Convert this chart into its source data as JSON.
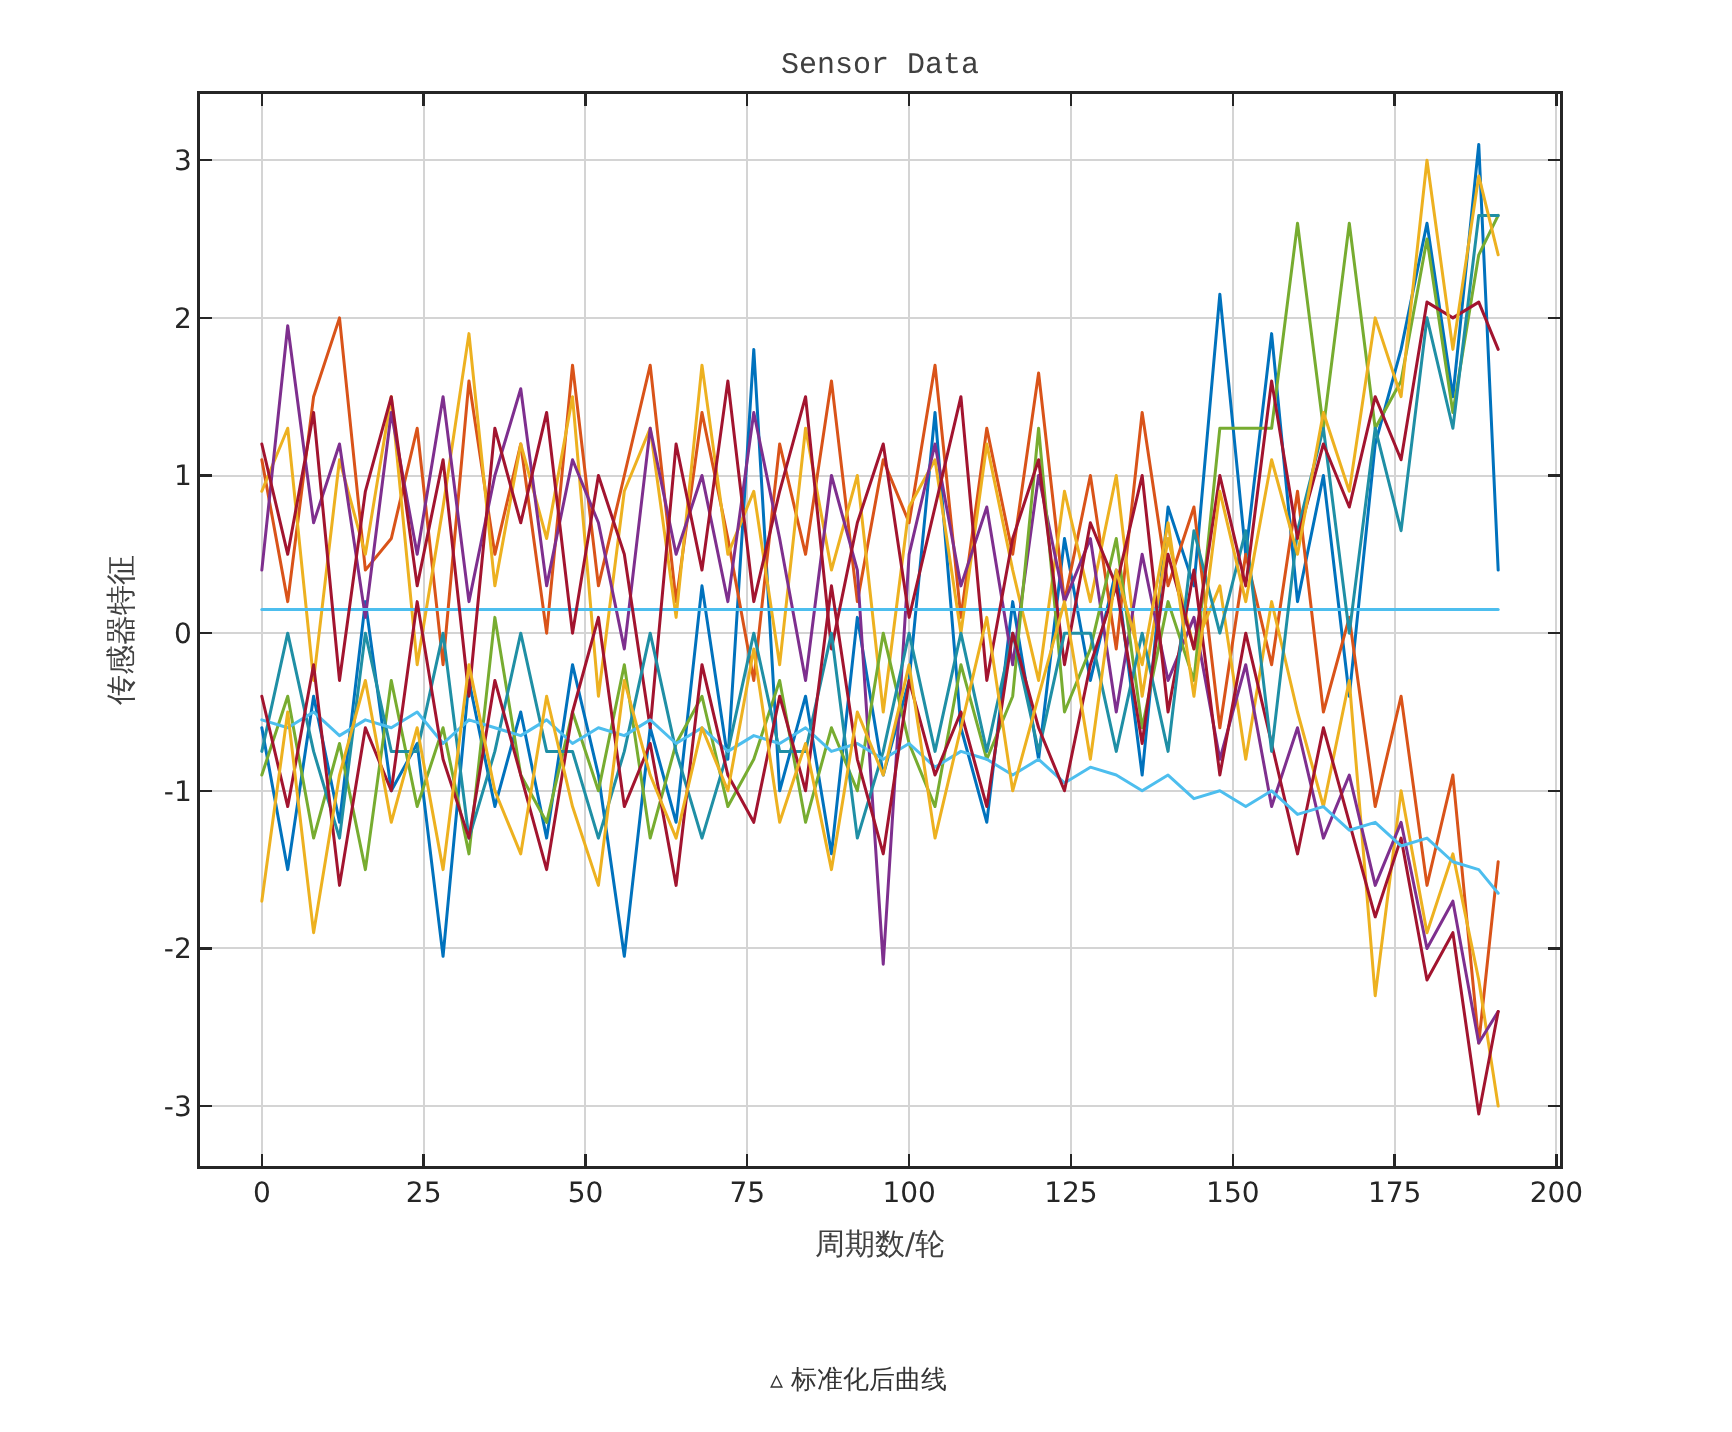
{
  "chart_data": {
    "type": "line",
    "title": "Sensor Data",
    "xlabel": "周期数/轮",
    "ylabel": "传感器特征",
    "annotations": [
      "▵ 标准化后曲线"
    ],
    "x": [
      0,
      4,
      8,
      12,
      16,
      20,
      24,
      28,
      32,
      36,
      40,
      44,
      48,
      52,
      56,
      60,
      64,
      68,
      72,
      76,
      80,
      84,
      88,
      92,
      96,
      100,
      104,
      108,
      112,
      116,
      120,
      124,
      128,
      132,
      136,
      140,
      144,
      148,
      152,
      156,
      160,
      164,
      168,
      172,
      176,
      180,
      184,
      188,
      191
    ],
    "series": [
      {
        "color": "#0072bd",
        "values": [
          -0.6,
          -1.5,
          -0.4,
          -1.2,
          0.2,
          -1.0,
          -0.7,
          -2.05,
          -0.3,
          -1.1,
          -0.5,
          -1.3,
          -0.2,
          -0.9,
          -2.05,
          -0.6,
          -1.2,
          0.3,
          -0.8,
          1.8,
          -1.0,
          -0.4,
          -1.4,
          0.1,
          -0.9,
          -0.3,
          1.4,
          -0.6,
          -1.2,
          0.2,
          -0.8,
          0.6,
          -0.3,
          0.4,
          -0.9,
          0.8,
          0.3,
          2.15,
          0.5,
          1.9,
          0.2,
          1.0,
          -0.4,
          1.2,
          1.8,
          2.6,
          1.5,
          3.1,
          0.4
        ]
      },
      {
        "color": "#d95319",
        "values": [
          1.1,
          0.2,
          1.5,
          2.0,
          0.4,
          0.6,
          1.3,
          -0.2,
          1.6,
          0.5,
          1.2,
          0.0,
          1.7,
          0.3,
          1.0,
          1.7,
          0.2,
          1.4,
          0.6,
          -0.3,
          1.2,
          0.5,
          1.6,
          0.2,
          1.1,
          0.7,
          1.7,
          0.1,
          1.3,
          0.5,
          1.65,
          0.2,
          1.0,
          -0.1,
          1.4,
          0.3,
          0.8,
          -0.6,
          0.5,
          -0.2,
          0.9,
          -0.5,
          0.1,
          -1.1,
          -0.4,
          -1.6,
          -0.9,
          -2.6,
          -1.45
        ]
      },
      {
        "color": "#edb120",
        "values": [
          0.9,
          1.3,
          -0.3,
          1.1,
          0.5,
          1.5,
          -0.2,
          0.8,
          1.9,
          0.3,
          1.2,
          0.6,
          1.5,
          -0.4,
          0.9,
          1.3,
          0.1,
          1.7,
          0.5,
          0.9,
          -0.2,
          1.3,
          0.4,
          1.0,
          -0.5,
          0.8,
          1.1,
          0.0,
          1.2,
          0.4,
          -0.3,
          0.9,
          0.2,
          1.0,
          -0.4,
          0.6,
          -0.1,
          0.3,
          -0.8,
          0.2,
          -0.5,
          -1.1,
          -0.3,
          -2.3,
          -1.0,
          -1.9,
          -1.4,
          -2.2,
          -3.0
        ]
      },
      {
        "color": "#7e2f8e",
        "values": [
          0.4,
          1.95,
          0.7,
          1.2,
          0.1,
          1.4,
          0.5,
          1.5,
          0.2,
          1.0,
          1.55,
          0.3,
          1.1,
          0.7,
          -0.1,
          1.3,
          0.5,
          1.0,
          0.2,
          1.4,
          0.6,
          -0.3,
          1.0,
          0.4,
          -2.1,
          0.5,
          1.2,
          0.3,
          0.8,
          -0.2,
          1.0,
          0.2,
          0.6,
          -0.5,
          0.5,
          -0.3,
          0.1,
          -0.8,
          -0.2,
          -1.1,
          -0.6,
          -1.3,
          -0.9,
          -1.6,
          -1.2,
          -2.0,
          -1.7,
          -2.6,
          -2.4
        ]
      },
      {
        "color": "#77ac30",
        "values": [
          -0.9,
          -0.4,
          -1.3,
          -0.7,
          -1.5,
          -0.3,
          -1.1,
          -0.6,
          -1.4,
          0.1,
          -0.9,
          -1.2,
          -0.5,
          -1.0,
          -0.2,
          -1.3,
          -0.7,
          -0.4,
          -1.1,
          -0.8,
          -0.3,
          -1.2,
          -0.6,
          -1.0,
          0.0,
          -0.7,
          -1.1,
          -0.2,
          -0.8,
          -0.4,
          1.3,
          -0.5,
          -0.1,
          0.6,
          -0.6,
          0.2,
          -0.3,
          1.3,
          1.3,
          1.3,
          2.6,
          1.3,
          2.6,
          1.3,
          1.6,
          2.5,
          1.4,
          2.4,
          2.65
        ]
      },
      {
        "color": "#4dbeee",
        "values": [
          0.15,
          0.15,
          0.15,
          0.15,
          0.15,
          0.15,
          0.15,
          0.15,
          0.15,
          0.15,
          0.15,
          0.15,
          0.15,
          0.15,
          0.15,
          0.15,
          0.15,
          0.15,
          0.15,
          0.15,
          0.15,
          0.15,
          0.15,
          0.15,
          0.15,
          0.15,
          0.15,
          0.15,
          0.15,
          0.15,
          0.15,
          0.15,
          0.15,
          0.15,
          0.15,
          0.15,
          0.15,
          0.15,
          0.15,
          0.15,
          0.15,
          0.15,
          0.15,
          0.15,
          0.15,
          0.15,
          0.15,
          0.15,
          0.15
        ]
      },
      {
        "color": "#a2142f",
        "values": [
          1.2,
          0.5,
          1.4,
          -0.3,
          0.9,
          1.5,
          0.3,
          1.1,
          -0.4,
          1.3,
          0.7,
          1.4,
          0.0,
          1.0,
          0.5,
          -0.6,
          1.2,
          0.4,
          1.6,
          0.2,
          0.9,
          1.5,
          -0.1,
          0.7,
          1.2,
          0.1,
          0.8,
          1.5,
          -0.3,
          0.6,
          1.1,
          -0.2,
          0.7,
          0.3,
          1.0,
          -0.5,
          0.4,
          -0.9,
          0.0,
          -0.7,
          -1.4,
          -0.6,
          -1.2,
          -1.8,
          -1.3,
          -2.2,
          -1.9,
          -3.05,
          -2.4
        ]
      },
      {
        "color": "#1f8fa5",
        "values": [
          -0.75,
          0,
          -0.75,
          -1.3,
          0,
          -0.75,
          -0.75,
          0,
          -1.3,
          -0.75,
          0,
          -0.75,
          -0.75,
          -1.3,
          -0.75,
          0,
          -0.75,
          -1.3,
          -0.75,
          0,
          -0.75,
          -0.75,
          0,
          -1.3,
          -0.75,
          0,
          -0.75,
          0,
          -0.75,
          0,
          -0.75,
          0,
          0,
          -0.75,
          0,
          -0.75,
          0.65,
          0,
          0.65,
          -0.75,
          0.65,
          1.3,
          0,
          1.3,
          0.65,
          2.0,
          1.3,
          2.65,
          2.65
        ]
      },
      {
        "color": "#4dbeee",
        "values": [
          -0.55,
          -0.6,
          -0.5,
          -0.65,
          -0.55,
          -0.6,
          -0.5,
          -0.7,
          -0.55,
          -0.6,
          -0.65,
          -0.55,
          -0.7,
          -0.6,
          -0.65,
          -0.55,
          -0.7,
          -0.6,
          -0.75,
          -0.65,
          -0.7,
          -0.6,
          -0.75,
          -0.7,
          -0.8,
          -0.7,
          -0.85,
          -0.75,
          -0.8,
          -0.9,
          -0.8,
          -0.95,
          -0.85,
          -0.9,
          -1.0,
          -0.9,
          -1.05,
          -1.0,
          -1.1,
          -1.0,
          -1.15,
          -1.1,
          -1.25,
          -1.2,
          -1.35,
          -1.3,
          -1.45,
          -1.5,
          -1.65
        ]
      },
      {
        "color": "#a2142f",
        "values": [
          -0.4,
          -1.1,
          -0.2,
          -1.6,
          -0.6,
          -1.0,
          0.2,
          -0.8,
          -1.3,
          -0.3,
          -0.9,
          -1.5,
          -0.5,
          0.1,
          -1.1,
          -0.7,
          -1.6,
          -0.2,
          -0.9,
          -1.2,
          -0.4,
          -1.0,
          0.3,
          -0.8,
          -1.4,
          -0.3,
          -0.9,
          -0.5,
          -1.1,
          0.0,
          -0.6,
          -1.0,
          -0.2,
          0.3,
          -0.7,
          0.5,
          -0.1,
          1.0,
          0.3,
          1.6,
          0.6,
          1.2,
          0.8,
          1.5,
          1.1,
          2.1,
          2.0,
          2.1,
          1.8
        ]
      },
      {
        "color": "#edb120",
        "values": [
          -1.7,
          -0.5,
          -1.9,
          -0.9,
          -0.3,
          -1.2,
          -0.6,
          -1.5,
          -0.2,
          -1.0,
          -1.4,
          -0.4,
          -1.1,
          -1.6,
          -0.3,
          -0.9,
          -1.3,
          -0.6,
          -1.0,
          -0.1,
          -1.2,
          -0.7,
          -1.5,
          -0.5,
          -0.9,
          -0.2,
          -1.3,
          -0.6,
          0.1,
          -1.0,
          -0.4,
          0.2,
          -0.8,
          0.4,
          -0.2,
          0.7,
          -0.4,
          0.9,
          0.2,
          1.1,
          0.5,
          1.4,
          0.9,
          2.0,
          1.5,
          3.0,
          1.8,
          2.9,
          2.4
        ]
      }
    ],
    "xlim": [
      -9.55,
      200.55
    ],
    "ylim": [
      -3.38,
      3.42
    ],
    "xticks": [
      0,
      25,
      50,
      75,
      100,
      125,
      150,
      175,
      200
    ],
    "yticks": [
      -3,
      -2,
      -1,
      0,
      1,
      2,
      3
    ],
    "grid": true,
    "marker": "none",
    "line_style": "solid"
  }
}
